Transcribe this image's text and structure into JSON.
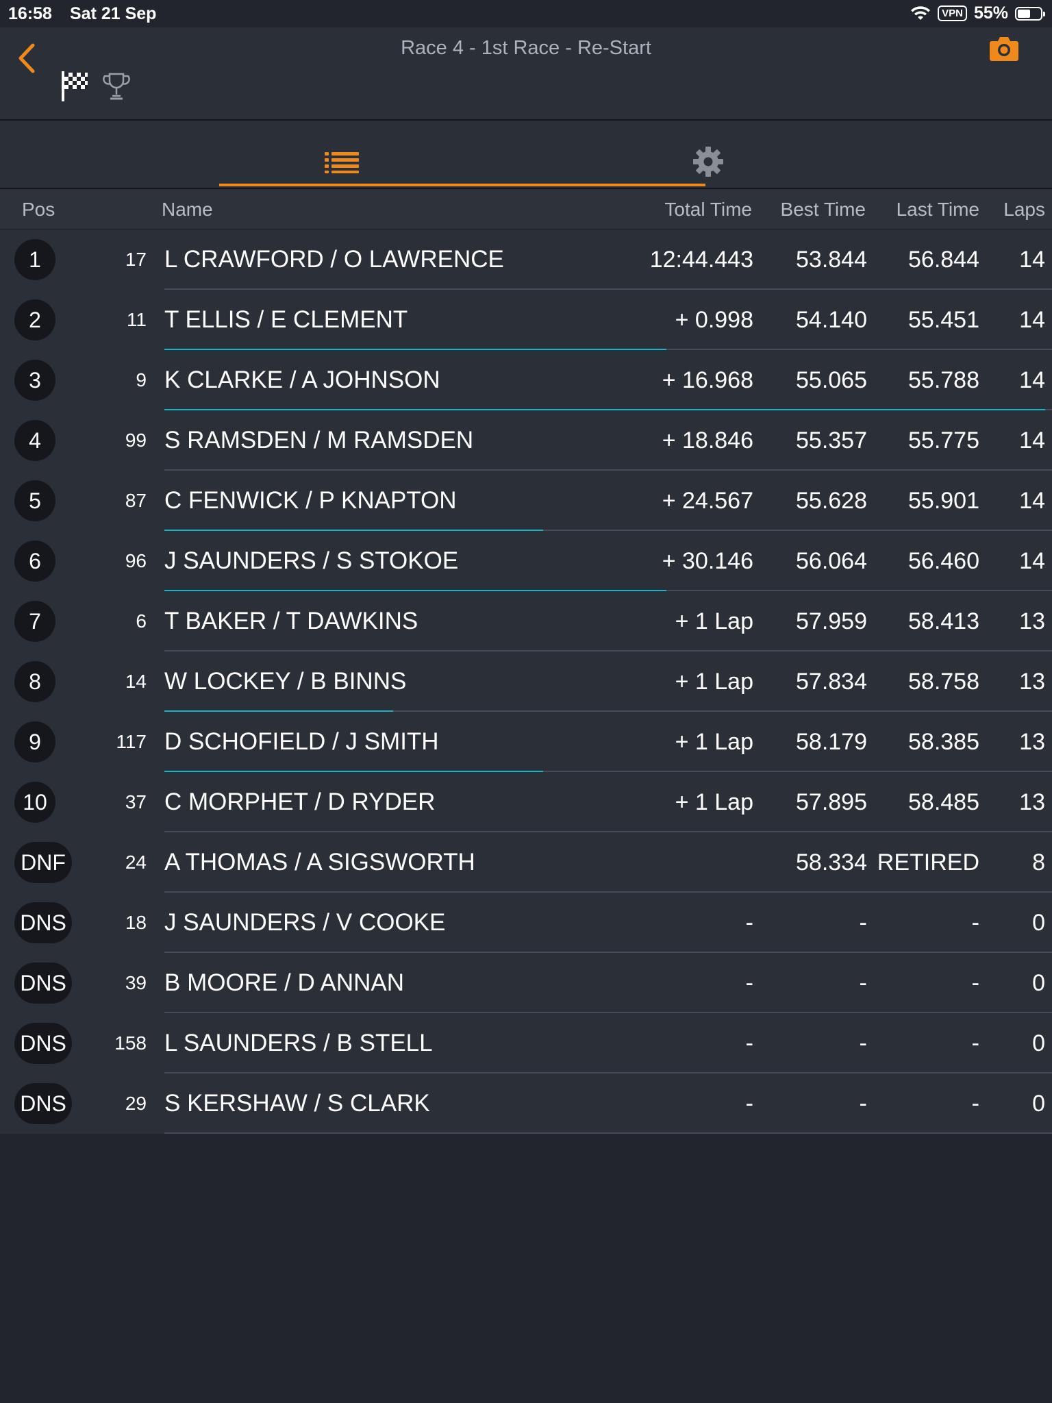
{
  "status_bar": {
    "time": "16:58",
    "date": "Sat 21 Sep",
    "vpn": "VPN",
    "battery": "55%",
    "battery_level": 0.55
  },
  "header": {
    "title": "Race 4 - 1st Race - Re-Start",
    "icons": {
      "back": "chevron-left-icon",
      "flag": "checkered-flag-icon",
      "trophy": "trophy-icon",
      "camera": "camera-icon"
    },
    "accent_color": "#f0891c"
  },
  "tabs": [
    {
      "icon": "list-icon",
      "active": true
    },
    {
      "icon": "gear-icon",
      "active": false
    }
  ],
  "columns": {
    "pos": "Pos",
    "name": "Name",
    "total": "Total Time",
    "best": "Best Time",
    "last": "Last Time",
    "laps": "Laps"
  },
  "rows": [
    {
      "pos": "1",
      "num": "17",
      "name": "L CRAWFORD / O LAWRENCE",
      "total": "12:44.443",
      "best": "53.844",
      "last": "56.844",
      "laps": "14",
      "progress": 0
    },
    {
      "pos": "2",
      "num": "11",
      "name": "T ELLIS / E CLEMENT",
      "total": "+ 0.998",
      "best": "54.140",
      "last": "55.451",
      "laps": "14",
      "progress": 0.57
    },
    {
      "pos": "3",
      "num": "9",
      "name": "K CLARKE / A JOHNSON",
      "total": "+ 16.968",
      "best": "55.065",
      "last": "55.788",
      "laps": "14",
      "progress": 1.0
    },
    {
      "pos": "4",
      "num": "99",
      "name": "S RAMSDEN / M RAMSDEN",
      "total": "+ 18.846",
      "best": "55.357",
      "last": "55.775",
      "laps": "14",
      "progress": 0
    },
    {
      "pos": "5",
      "num": "87",
      "name": "C FENWICK / P KNAPTON",
      "total": "+ 24.567",
      "best": "55.628",
      "last": "55.901",
      "laps": "14",
      "progress": 0.43
    },
    {
      "pos": "6",
      "num": "96",
      "name": "J SAUNDERS / S STOKOE",
      "total": "+ 30.146",
      "best": "56.064",
      "last": "56.460",
      "laps": "14",
      "progress": 0.57
    },
    {
      "pos": "7",
      "num": "6",
      "name": "T BAKER / T DAWKINS",
      "total": "+ 1 Lap",
      "best": "57.959",
      "last": "58.413",
      "laps": "13",
      "progress": 0
    },
    {
      "pos": "8",
      "num": "14",
      "name": "W LOCKEY / B BINNS",
      "total": "+ 1 Lap",
      "best": "57.834",
      "last": "58.758",
      "laps": "13",
      "progress": 0.26
    },
    {
      "pos": "9",
      "num": "117",
      "name": "D SCHOFIELD / J SMITH",
      "total": "+ 1 Lap",
      "best": "58.179",
      "last": "58.385",
      "laps": "13",
      "progress": 0.43
    },
    {
      "pos": "10",
      "num": "37",
      "name": "C MORPHET / D RYDER",
      "total": "+ 1 Lap",
      "best": "57.895",
      "last": "58.485",
      "laps": "13",
      "progress": 0
    },
    {
      "pos": "DNF",
      "num": "24",
      "name": "A THOMAS / A SIGSWORTH",
      "total": "",
      "best": "58.334",
      "last": "RETIRED",
      "laps": "8",
      "progress": 0
    },
    {
      "pos": "DNS",
      "num": "18",
      "name": "J SAUNDERS / V COOKE",
      "total": "-",
      "best": "-",
      "last": "-",
      "laps": "0",
      "progress": 0
    },
    {
      "pos": "DNS",
      "num": "39",
      "name": "B MOORE / D ANNAN",
      "total": "-",
      "best": "-",
      "last": "-",
      "laps": "0",
      "progress": 0
    },
    {
      "pos": "DNS",
      "num": "158",
      "name": "L SAUNDERS / B STELL",
      "total": "-",
      "best": "-",
      "last": "-",
      "laps": "0",
      "progress": 0
    },
    {
      "pos": "DNS",
      "num": "29",
      "name": "S KERSHAW / S CLARK",
      "total": "-",
      "best": "-",
      "last": "-",
      "laps": "0",
      "progress": 0
    }
  ]
}
